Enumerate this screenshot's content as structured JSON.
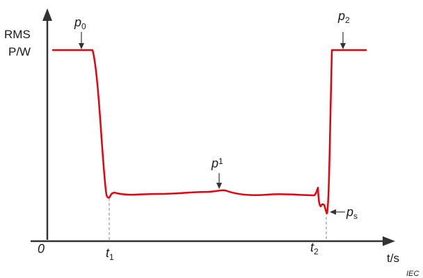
{
  "axes": {
    "y_label_line1": "RMS",
    "y_label_line2": "P/W",
    "x_label": "t/s",
    "origin": "0"
  },
  "annotations": {
    "p0": {
      "base": "p",
      "sub": "0"
    },
    "p1": {
      "base": "p",
      "sub": "1"
    },
    "p2": {
      "base": "p",
      "sub": "2"
    },
    "ps": {
      "base": "p",
      "sub": "s"
    },
    "t1": {
      "base": "t",
      "sub": "1"
    },
    "t2": {
      "base": "t",
      "sub": "2"
    }
  },
  "credit": "IEC",
  "colors": {
    "curve": "#e8000b",
    "axis": "#333333",
    "guide": "#808080"
  }
}
